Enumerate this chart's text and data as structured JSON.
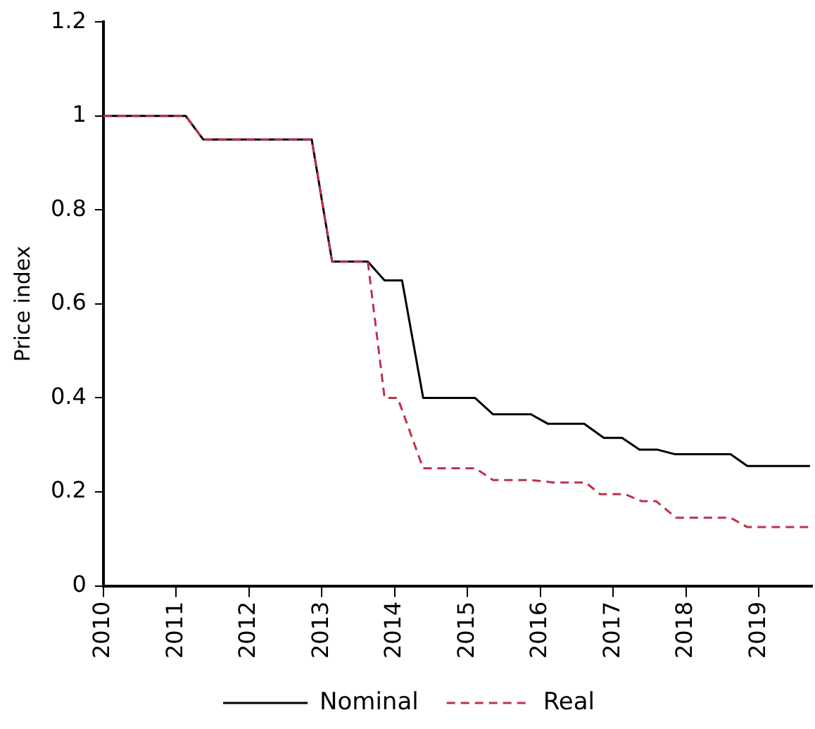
{
  "chart_data": {
    "type": "line",
    "ylabel": "Price index",
    "xlim": [
      2010,
      2019.73
    ],
    "xticks": [
      2010,
      2011,
      2012,
      2013,
      2014,
      2015,
      2016,
      2017,
      2018,
      2019
    ],
    "ylim": [
      0,
      1.2
    ],
    "yticks": [
      0,
      0.2,
      0.4,
      0.6,
      0.8,
      1,
      1.2
    ],
    "grid": false,
    "legend": "bottom",
    "marker": "none",
    "series": [
      {
        "name": "Nominal",
        "color": "#000000",
        "line_style": "solid",
        "x": [
          2010,
          2011.13,
          2011.37,
          2012.86,
          2013.14,
          2013.63,
          2013.86,
          2014.1,
          2014.39,
          2015.1,
          2015.35,
          2015.87,
          2016.1,
          2016.6,
          2016.87,
          2017.12,
          2017.36,
          2017.6,
          2017.85,
          2018.61,
          2018.84,
          2019.7
        ],
        "values": [
          1,
          1,
          0.95,
          0.95,
          0.69,
          0.69,
          0.65,
          0.65,
          0.4,
          0.4,
          0.365,
          0.365,
          0.345,
          0.345,
          0.315,
          0.315,
          0.29,
          0.29,
          0.28,
          0.28,
          0.255,
          0.255
        ]
      },
      {
        "name": "Real",
        "color": "#c0304a",
        "line_style": "dashed",
        "x": [
          2010,
          2011.13,
          2011.37,
          2012.86,
          2013.14,
          2013.63,
          2013.86,
          2014.04,
          2014.39,
          2015.11,
          2015.35,
          2015.88,
          2016.18,
          2016.62,
          2016.82,
          2017.16,
          2017.39,
          2017.59,
          2017.86,
          2018.61,
          2018.84,
          2019.7
        ],
        "values": [
          1,
          1,
          0.95,
          0.95,
          0.69,
          0.69,
          0.4,
          0.4,
          0.25,
          0.25,
          0.225,
          0.225,
          0.22,
          0.22,
          0.195,
          0.195,
          0.18,
          0.18,
          0.145,
          0.145,
          0.125,
          0.125
        ]
      }
    ]
  }
}
